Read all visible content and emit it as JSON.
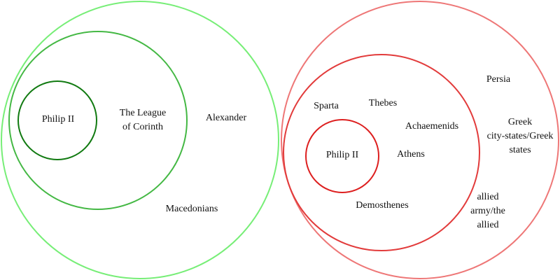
{
  "colors": {
    "left_outer": "#77ee77",
    "left_middle": "#44b844",
    "left_inner": "#117a11",
    "right_outer": "#ee7777",
    "right_middle": "#e23b3b",
    "right_inner": "#dd1f1f"
  },
  "left_group": {
    "inner_label": "Philip II",
    "middle_label_line1": "The League",
    "middle_label_line2": "of Corinth",
    "outer_label_alexander": "Alexander",
    "outer_label_macedonians": "Macedonians"
  },
  "right_group": {
    "inner_label": "Philip II",
    "middle_sparta": "Sparta",
    "middle_thebes": "Thebes",
    "middle_achaemenids": "Achaemenids",
    "middle_athens": "Athens",
    "middle_demosthenes": "Demosthenes",
    "outer_persia": "Persia",
    "outer_greek_line1": "Greek",
    "outer_greek_line2": "city-states/Greek",
    "outer_greek_line3": "states",
    "outer_allied_line1": "allied",
    "outer_allied_line2": "army/the",
    "outer_allied_line3": "allied"
  }
}
